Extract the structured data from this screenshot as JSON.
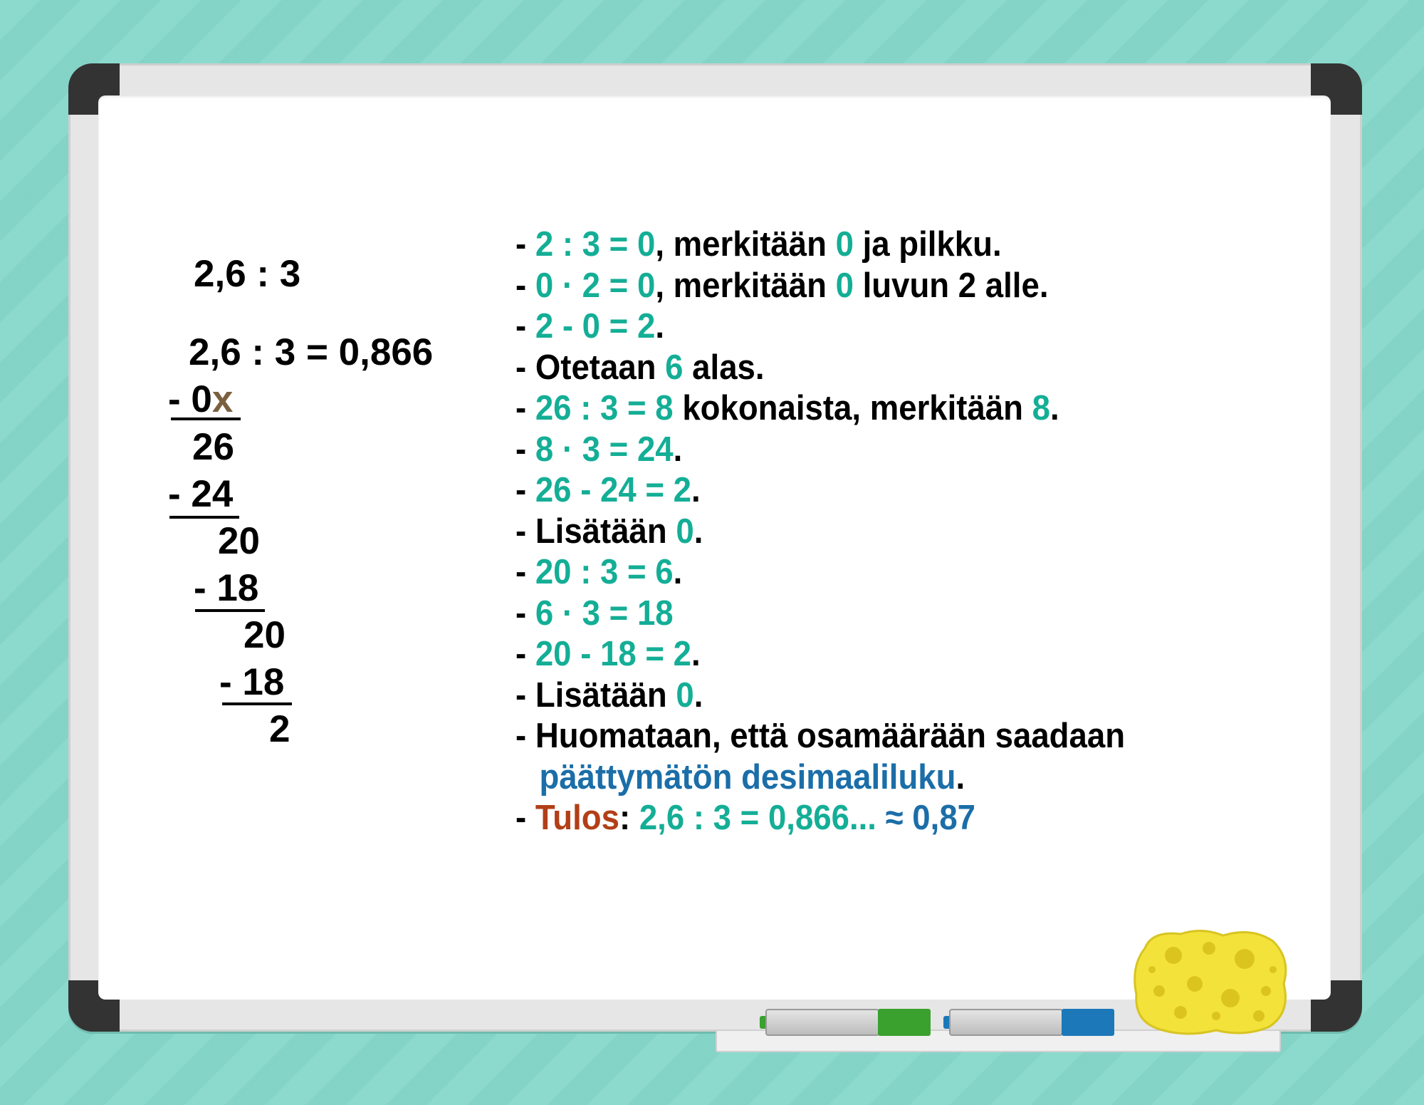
{
  "colors": {
    "background": "#86d8cb",
    "frame": "#e6e6e6",
    "board": "#ffffff",
    "highlight_green": "#14ae96",
    "highlight_blue": "#1b6ea8",
    "highlight_red": "#b23f17",
    "crossed_mark": "#7a6040",
    "marker_green": "#3aa12f",
    "marker_blue": "#1c78b8",
    "sponge": "#f2e23a"
  },
  "division": {
    "problem": "2,6 : 3",
    "equation": "2,6 : 3 = 0,866",
    "rows": [
      {
        "text": "- 0",
        "mark": "x"
      },
      {
        "text": "26"
      },
      {
        "text": "- 24"
      },
      {
        "text": "20"
      },
      {
        "text": "- 18"
      },
      {
        "text": "20"
      },
      {
        "text": "- 18"
      },
      {
        "text": "2"
      }
    ]
  },
  "steps": [
    [
      {
        "t": "- ",
        "c": "k"
      },
      {
        "t": "2 : 3 = 0",
        "c": "g"
      },
      {
        "t": ", merkitään ",
        "c": "k"
      },
      {
        "t": "0",
        "c": "g"
      },
      {
        "t": " ja pilkku.",
        "c": "k"
      }
    ],
    [
      {
        "t": "- ",
        "c": "k"
      },
      {
        "t": "0 · 2 = 0",
        "c": "g"
      },
      {
        "t": ", merkitään ",
        "c": "k"
      },
      {
        "t": "0",
        "c": "g"
      },
      {
        "t": " luvun 2 alle.",
        "c": "k"
      }
    ],
    [
      {
        "t": "- ",
        "c": "k"
      },
      {
        "t": "2 - 0 = 2",
        "c": "g"
      },
      {
        "t": ".",
        "c": "k"
      }
    ],
    [
      {
        "t": "- Otetaan ",
        "c": "k"
      },
      {
        "t": "6",
        "c": "g"
      },
      {
        "t": " alas.",
        "c": "k"
      }
    ],
    [
      {
        "t": "- ",
        "c": "k"
      },
      {
        "t": "26 : 3 = 8",
        "c": "g"
      },
      {
        "t": " kokonaista, merkitään ",
        "c": "k"
      },
      {
        "t": "8",
        "c": "g"
      },
      {
        "t": ".",
        "c": "k"
      }
    ],
    [
      {
        "t": "- ",
        "c": "k"
      },
      {
        "t": "8 · 3 = 24",
        "c": "g"
      },
      {
        "t": ".",
        "c": "k"
      }
    ],
    [
      {
        "t": "- ",
        "c": "k"
      },
      {
        "t": "26 - 24 = 2",
        "c": "g"
      },
      {
        "t": ".",
        "c": "k"
      }
    ],
    [
      {
        "t": "- Lisätään ",
        "c": "k"
      },
      {
        "t": "0",
        "c": "g"
      },
      {
        "t": ".",
        "c": "k"
      }
    ],
    [
      {
        "t": "- ",
        "c": "k"
      },
      {
        "t": "20 : 3 = 6",
        "c": "g"
      },
      {
        "t": ".",
        "c": "k"
      }
    ],
    [
      {
        "t": "- ",
        "c": "k"
      },
      {
        "t": "6 · 3 = 18",
        "c": "g"
      }
    ],
    [
      {
        "t": "- ",
        "c": "k"
      },
      {
        "t": "20 - 18 = 2",
        "c": "g"
      },
      {
        "t": ".",
        "c": "k"
      }
    ],
    [
      {
        "t": "- Lisätään ",
        "c": "k"
      },
      {
        "t": "0",
        "c": "g"
      },
      {
        "t": ".",
        "c": "k"
      }
    ],
    [
      {
        "t": "- Huomataan, että osamäärään saadaan",
        "c": "k"
      }
    ],
    [
      {
        "t": "päättymätön desimaaliluku",
        "c": "b"
      },
      {
        "t": ".",
        "c": "k"
      }
    ],
    [
      {
        "t": "- ",
        "c": "k"
      },
      {
        "t": "Tulos",
        "c": "r"
      },
      {
        "t": ": ",
        "c": "k"
      },
      {
        "t": "2,6 : 3 = 0,866... ",
        "c": "g"
      },
      {
        "t": "≈ 0,87",
        "c": "b"
      }
    ]
  ]
}
